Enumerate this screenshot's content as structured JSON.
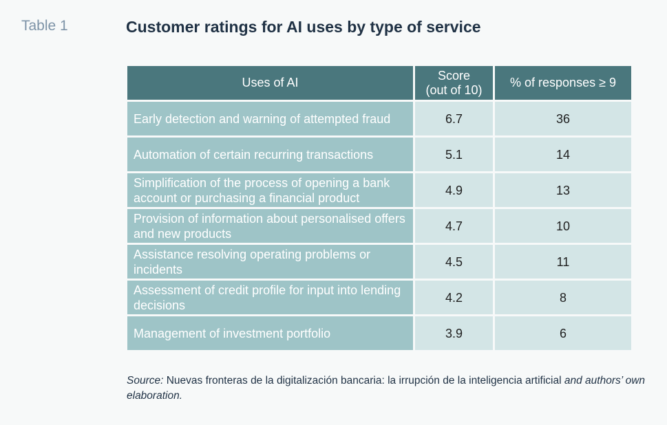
{
  "table_label": "Table 1",
  "title": "Customer ratings for AI uses by type of service",
  "headers": {
    "uses": "Uses of AI",
    "score_line1": "Score",
    "score_line2": "(out of 10)",
    "pct": "% of responses ≥ 9"
  },
  "rows": [
    {
      "use": "Early detection and warning of attempted fraud",
      "score": "6.7",
      "pct": "36"
    },
    {
      "use": "Automation of certain recurring transactions",
      "score": "5.1",
      "pct": "14"
    },
    {
      "use": "Simplification of the process of opening a bank account or purchasing a financial product",
      "score": "4.9",
      "pct": "13"
    },
    {
      "use": "Provision of information about personalised offers and new products",
      "score": "4.7",
      "pct": "10"
    },
    {
      "use": "Assistance resolving operating problems or incidents",
      "score": "4.5",
      "pct": "11"
    },
    {
      "use": "Assessment of credit profile for input into lending decisions",
      "score": "4.2",
      "pct": "8"
    },
    {
      "use": "Management of investment portfolio",
      "score": "3.9",
      "pct": "6"
    }
  ],
  "source": {
    "label": "Source:",
    "text": " Nuevas fronteras de la digitalización bancaria: la irrupción de la inteligencia artificial ",
    "suffix": "and authors’ own elaboration."
  }
}
